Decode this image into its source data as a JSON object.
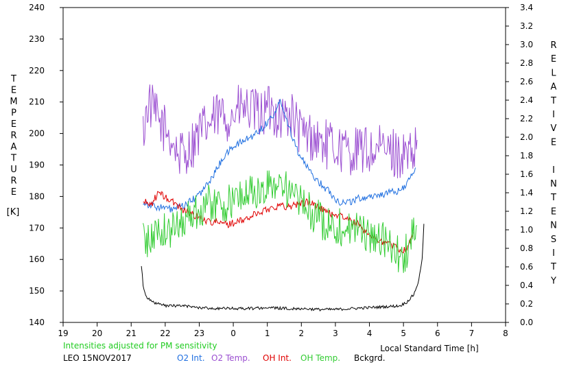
{
  "chart_data": {
    "type": "line",
    "ylabel_left": "TEMPERATURE",
    "ylabel_left_unit": "[K]",
    "ylabel_right": "RELATIVE INTENSITY",
    "xlabel": "Local Standard Time [h]",
    "note": "Intensities adjusted for PM sensitivity",
    "station_date": "LEO 15NOV2017",
    "xlim": [
      19,
      32
    ],
    "xtick_labels": [
      "19",
      "20",
      "21",
      "22",
      "23",
      "0",
      "1",
      "2",
      "3",
      "4",
      "5",
      "6",
      "7",
      "8"
    ],
    "ylim_left": [
      140,
      240
    ],
    "ylim_right": [
      0.0,
      3.4
    ],
    "colors": {
      "o2_int": "#1f6fe0",
      "o2_temp": "#9b4fd1",
      "oh_int": "#e00000",
      "oh_temp": "#33cc33",
      "bckgrd": "#000000",
      "note": "#22cc22"
    },
    "legend": [
      {
        "key": "o2_int",
        "label": "O2 Int."
      },
      {
        "key": "o2_temp",
        "label": "O2 Temp."
      },
      {
        "key": "oh_int",
        "label": "OH Int."
      },
      {
        "key": "oh_temp",
        "label": "OH Temp."
      },
      {
        "key": "bckgrd",
        "label": "Bckgrd."
      }
    ],
    "series": [
      {
        "key": "o2_temp",
        "axis": "left",
        "noise": 8,
        "x": [
          21.35,
          21.5,
          21.8,
          22.1,
          22.4,
          22.7,
          23.0,
          23.3,
          23.6,
          23.9,
          24.2,
          24.5,
          24.8,
          25.1,
          25.4,
          25.7,
          26.0,
          26.3,
          26.6,
          26.9,
          27.2,
          27.5,
          27.8,
          28.1,
          28.4,
          28.7,
          29.0,
          29.3,
          29.4
        ],
        "y": [
          200,
          210,
          204,
          200,
          193,
          195,
          200,
          203,
          206,
          205,
          208,
          207,
          206,
          208,
          205,
          206,
          200,
          199,
          197,
          196,
          195,
          194,
          195,
          194,
          195,
          194,
          193,
          192,
          197
        ]
      },
      {
        "key": "o2_int",
        "axis": "right",
        "noise": 0.04,
        "x": [
          21.35,
          21.6,
          21.9,
          22.2,
          22.5,
          22.8,
          23.1,
          23.4,
          23.7,
          24.0,
          24.3,
          24.6,
          24.9,
          25.2,
          25.4,
          25.6,
          25.9,
          26.2,
          26.5,
          26.8,
          27.1,
          27.4,
          27.7,
          28.0,
          28.3,
          28.6,
          28.9,
          29.2,
          29.35
        ],
        "y": [
          1.3,
          1.26,
          1.24,
          1.22,
          1.25,
          1.32,
          1.42,
          1.58,
          1.78,
          1.9,
          1.96,
          2.02,
          2.12,
          2.25,
          2.4,
          2.15,
          1.85,
          1.65,
          1.52,
          1.42,
          1.3,
          1.3,
          1.34,
          1.36,
          1.38,
          1.4,
          1.42,
          1.55,
          1.65
        ]
      },
      {
        "key": "oh_int",
        "axis": "right",
        "noise": 0.04,
        "x": [
          21.35,
          21.6,
          21.8,
          22.0,
          22.3,
          22.6,
          22.9,
          23.2,
          23.5,
          23.8,
          24.1,
          24.4,
          24.7,
          25.0,
          25.3,
          25.6,
          25.9,
          26.2,
          26.5,
          26.8,
          27.1,
          27.4,
          27.7,
          28.0,
          28.3,
          28.6,
          28.8,
          29.05,
          29.3
        ],
        "y": [
          1.3,
          1.28,
          1.4,
          1.35,
          1.28,
          1.2,
          1.15,
          1.1,
          1.08,
          1.06,
          1.08,
          1.12,
          1.18,
          1.22,
          1.26,
          1.25,
          1.28,
          1.3,
          1.25,
          1.18,
          1.16,
          1.1,
          1.05,
          0.95,
          0.88,
          0.85,
          0.8,
          0.78,
          0.95
        ]
      },
      {
        "key": "oh_temp",
        "axis": "left",
        "noise": 6,
        "x": [
          21.35,
          21.5,
          21.8,
          22.1,
          22.4,
          22.7,
          23.0,
          23.3,
          23.6,
          23.9,
          24.2,
          24.5,
          24.8,
          25.1,
          25.4,
          25.7,
          26.0,
          26.3,
          26.6,
          26.9,
          27.2,
          27.5,
          27.8,
          28.1,
          28.4,
          28.7,
          29.0,
          29.2,
          29.4
        ],
        "y": [
          168,
          165,
          170,
          168,
          172,
          174,
          176,
          178,
          177,
          178,
          180,
          182,
          180,
          184,
          185,
          180,
          178,
          175,
          172,
          171,
          170,
          170,
          169,
          167,
          166,
          163,
          160,
          166,
          169
        ]
      },
      {
        "key": "bckgrd",
        "axis": "right",
        "noise": 0.015,
        "x": [
          21.3,
          21.35,
          21.45,
          21.6,
          22.0,
          22.5,
          23.0,
          23.5,
          24.0,
          24.5,
          25.0,
          25.5,
          26.0,
          26.5,
          27.0,
          27.5,
          28.0,
          28.5,
          28.9,
          29.1,
          29.3,
          29.45,
          29.55,
          29.6
        ],
        "y": [
          0.62,
          0.4,
          0.28,
          0.22,
          0.18,
          0.18,
          0.16,
          0.15,
          0.15,
          0.15,
          0.16,
          0.15,
          0.15,
          0.14,
          0.14,
          0.15,
          0.16,
          0.17,
          0.18,
          0.22,
          0.3,
          0.45,
          0.7,
          1.05
        ]
      }
    ]
  }
}
